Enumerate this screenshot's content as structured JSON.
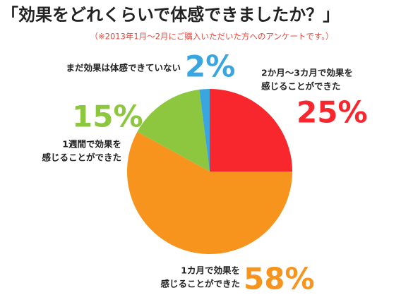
{
  "chart_data": {
    "type": "pie",
    "title": "「効果をどれくらいで体感できましたか？」",
    "subtitle": "（※2013年1月〜2月にご購入いただいた方へのアンケートです。）",
    "categories": [
      [
        "2か月〜3カ月で効果を",
        "感じることができた"
      ],
      [
        "1カ月で効果を",
        "感じることができた"
      ],
      [
        "1週間で効果を",
        "感じることができた"
      ],
      [
        "まだ効果は体感できていない"
      ]
    ],
    "values": [
      25,
      58,
      15,
      2
    ],
    "value_labels": [
      "25%",
      "58%",
      "15%",
      "2%"
    ],
    "colors": [
      "#f8272d",
      "#f7941d",
      "#8dc63f",
      "#3aa6e0"
    ]
  }
}
